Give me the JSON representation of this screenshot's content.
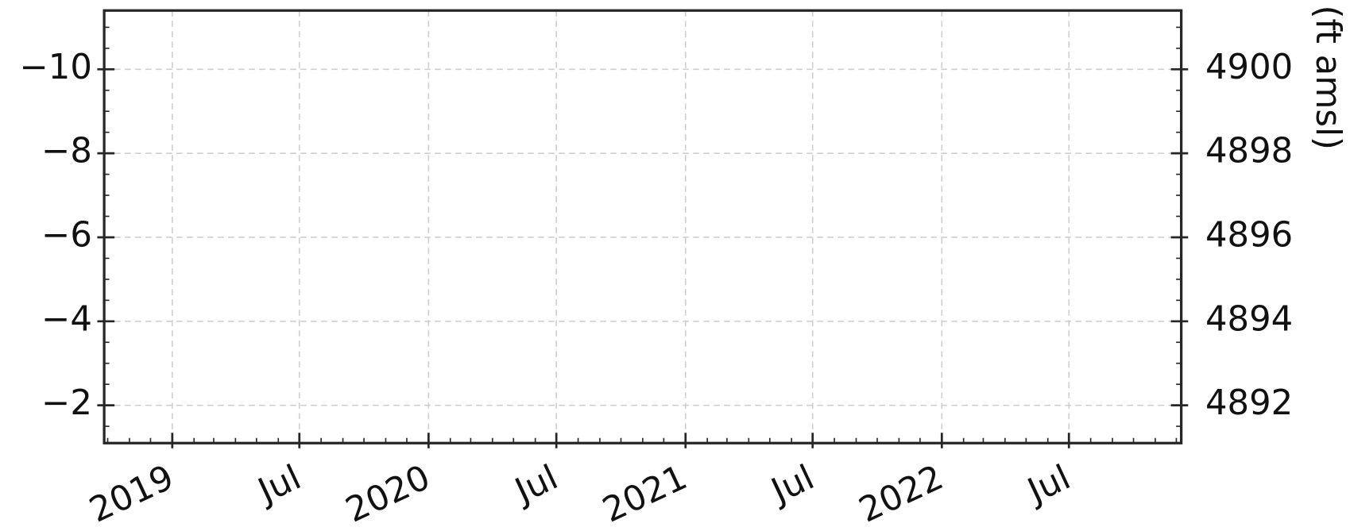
{
  "chart_data": {
    "type": "line",
    "y2_label": "(ft amsl)",
    "xlim": [
      "2018-09-26",
      "2022-12-08"
    ],
    "xticks": [
      {
        "value": "2019-01-01",
        "label": "2019"
      },
      {
        "value": "2019-07-01",
        "label": "Jul"
      },
      {
        "value": "2020-01-01",
        "label": "2020"
      },
      {
        "value": "2020-07-01",
        "label": "Jul"
      },
      {
        "value": "2021-01-01",
        "label": "2021"
      },
      {
        "value": "2021-07-01",
        "label": "Jul"
      },
      {
        "value": "2022-01-01",
        "label": "2022"
      },
      {
        "value": "2022-07-01",
        "label": "Jul"
      }
    ],
    "ylim": [
      -1.1,
      -11.4
    ],
    "yticks": [
      {
        "value": -10,
        "label": "−10"
      },
      {
        "value": -8,
        "label": "−8"
      },
      {
        "value": -6,
        "label": "−6"
      },
      {
        "value": -4,
        "label": "−4"
      },
      {
        "value": -2,
        "label": "−2"
      }
    ],
    "y2lim": [
      4891.1,
      4901.4
    ],
    "y2ticks": [
      4900,
      4898,
      4896,
      4894,
      4892
    ],
    "grid": true,
    "series": []
  }
}
